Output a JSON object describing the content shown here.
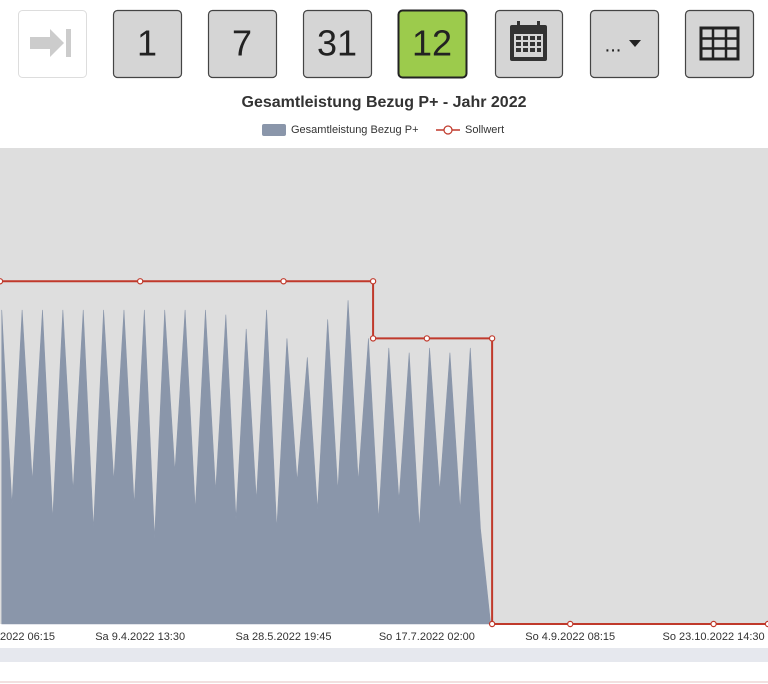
{
  "toolbar": {
    "buttons": [
      "1",
      "7",
      "31",
      "12"
    ],
    "active": 3,
    "more": "..."
  },
  "chart_data": {
    "type": "area",
    "title": "Gesamtleistung Bezug P+ - Jahr 2022",
    "xlim": [
      50.4,
      314.3
    ],
    "ylim": [
      0,
      100
    ],
    "xticks": [
      {
        "value": 49.3,
        "label": "2022 06:15"
      },
      {
        "value": 98.56,
        "label": "Sa 9.4.2022 13:30"
      },
      {
        "value": 147.82,
        "label": "Sa 28.5.2022 19:45"
      },
      {
        "value": 197.08,
        "label": "So 17.7.2022 02:00"
      },
      {
        "value": 246.34,
        "label": "So 4.9.2022 08:15"
      },
      {
        "value": 295.6,
        "label": "So 23.10.2022 14:30"
      }
    ],
    "series": [
      {
        "name": "Gesamtleistung Bezug P+",
        "type": "area",
        "color": "#8a96aa",
        "x": [
          51,
          54.5,
          58,
          61.5,
          65,
          68.5,
          72,
          75.5,
          79,
          82.5,
          86,
          89.5,
          93,
          96.5,
          100,
          103.5,
          107,
          110.5,
          114,
          117.5,
          121,
          124.5,
          128,
          131.5,
          135,
          138.5,
          142,
          145.5,
          149,
          152.5,
          156,
          159.5,
          163,
          166.5,
          170,
          173.5,
          177,
          180.5,
          184,
          187.5,
          191,
          194.5,
          198,
          201.5,
          205,
          208.5,
          212,
          215.5,
          219
        ],
        "values": [
          66,
          25,
          66,
          30,
          66,
          22,
          66,
          28,
          66,
          20,
          66,
          30,
          66,
          25,
          66,
          18,
          66,
          32,
          66,
          24,
          66,
          28,
          65,
          22,
          62,
          26,
          66,
          20,
          60,
          30,
          56,
          24,
          64,
          28,
          68,
          30,
          60,
          22,
          58,
          26,
          57,
          20,
          58,
          28,
          57,
          24,
          58,
          20,
          0
        ]
      },
      {
        "name": "Sollwert",
        "type": "line",
        "color": "#c0392b",
        "x": [
          50.4,
          98.56,
          147.82,
          178.6,
          178.6,
          197.08,
          219.5,
          219.5,
          246.34,
          295.6,
          314.3
        ],
        "values": [
          72,
          72,
          72,
          72,
          60,
          60,
          60,
          0,
          0,
          0,
          0
        ]
      }
    ]
  }
}
